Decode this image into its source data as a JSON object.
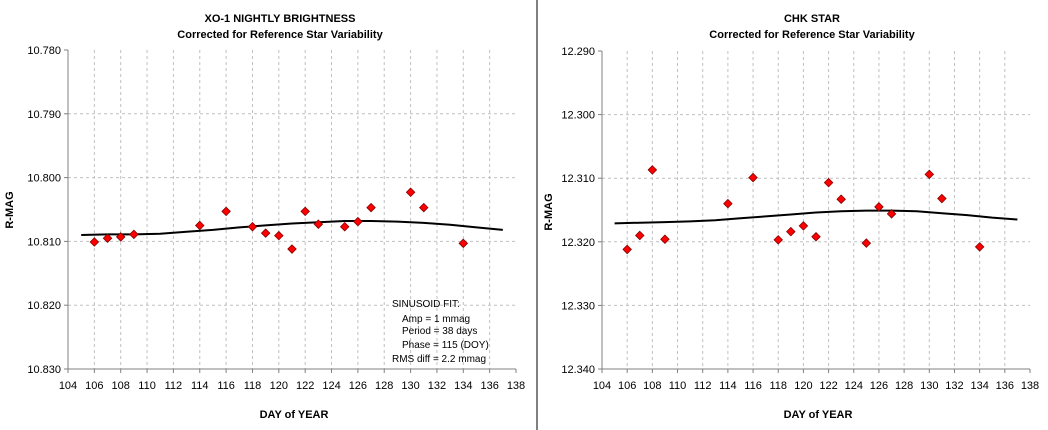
{
  "colors": {
    "marker": "#ff0000",
    "marker_edge": "#800000",
    "grid": "#c0c0c0",
    "fit_line": "#000000",
    "divider": "#000000"
  },
  "chart_data": [
    {
      "type": "scatter",
      "title": "XO-1 NIGHTLY BRIGHTNESS",
      "subtitle": "Corrected for Reference Star Variability",
      "xlabel": "DAY of YEAR",
      "ylabel": "R-MAG",
      "xlim": [
        104,
        138
      ],
      "ylim": [
        10.78,
        10.83
      ],
      "y_inverted": true,
      "grid": true,
      "x_ticks": [
        "104",
        "106",
        "108",
        "110",
        "112",
        "114",
        "116",
        "118",
        "120",
        "122",
        "124",
        "126",
        "128",
        "130",
        "132",
        "134",
        "136",
        "138"
      ],
      "y_ticks": [
        "10.780",
        "10.790",
        "10.800",
        "10.810",
        "10.820",
        "10.830"
      ],
      "points": [
        {
          "x": 106,
          "y": 10.8101
        },
        {
          "x": 107,
          "y": 10.8095
        },
        {
          "x": 108,
          "y": 10.8093
        },
        {
          "x": 109,
          "y": 10.8089
        },
        {
          "x": 114,
          "y": 10.8075
        },
        {
          "x": 116,
          "y": 10.8053
        },
        {
          "x": 118,
          "y": 10.8077
        },
        {
          "x": 119,
          "y": 10.8087
        },
        {
          "x": 120,
          "y": 10.8091
        },
        {
          "x": 121,
          "y": 10.8112
        },
        {
          "x": 122,
          "y": 10.8053
        },
        {
          "x": 123,
          "y": 10.8073
        },
        {
          "x": 125,
          "y": 10.8077
        },
        {
          "x": 126,
          "y": 10.8069
        },
        {
          "x": 127,
          "y": 10.8047
        },
        {
          "x": 130,
          "y": 10.8023
        },
        {
          "x": 131,
          "y": 10.8047
        },
        {
          "x": 134,
          "y": 10.8103
        }
      ],
      "fit": {
        "x": [
          105,
          107,
          109,
          111,
          113,
          115,
          117,
          119,
          121,
          123,
          125,
          127,
          129,
          131,
          133,
          135,
          137
        ],
        "y": [
          10.809,
          10.8089,
          10.8089,
          10.8088,
          10.8085,
          10.8082,
          10.8078,
          10.8075,
          10.8072,
          10.807,
          10.8068,
          10.8068,
          10.8069,
          10.8071,
          10.8074,
          10.8078,
          10.8082
        ]
      },
      "annotation": [
        "SINUSOID FIT:",
        "Amp = 1  mmag",
        "Period = 38 days",
        "Phase = 115 (DOY)",
        "RMS diff = 2.2 mmag"
      ]
    },
    {
      "type": "scatter",
      "title": "CHK STAR",
      "subtitle": "Corrected for Reference Star Variability",
      "xlabel": "DAY of YEAR",
      "ylabel": "R-MAG",
      "xlim": [
        104,
        138
      ],
      "ylim": [
        12.29,
        12.34
      ],
      "y_inverted": true,
      "grid": true,
      "x_ticks": [
        "104",
        "106",
        "108",
        "110",
        "112",
        "114",
        "116",
        "118",
        "120",
        "122",
        "124",
        "126",
        "128",
        "130",
        "132",
        "134",
        "136",
        "138"
      ],
      "y_ticks": [
        "12.290",
        "12.300",
        "12.310",
        "12.320",
        "12.330",
        "12.340"
      ],
      "points": [
        {
          "x": 106,
          "y": 12.3212
        },
        {
          "x": 107,
          "y": 12.319
        },
        {
          "x": 108,
          "y": 12.3087
        },
        {
          "x": 109,
          "y": 12.3196
        },
        {
          "x": 114,
          "y": 12.314
        },
        {
          "x": 116,
          "y": 12.3099
        },
        {
          "x": 118,
          "y": 12.3197
        },
        {
          "x": 119,
          "y": 12.3184
        },
        {
          "x": 120,
          "y": 12.3175
        },
        {
          "x": 121,
          "y": 12.3192
        },
        {
          "x": 122,
          "y": 12.3107
        },
        {
          "x": 123,
          "y": 12.3133
        },
        {
          "x": 125,
          "y": 12.3202
        },
        {
          "x": 126,
          "y": 12.3145
        },
        {
          "x": 127,
          "y": 12.3156
        },
        {
          "x": 130,
          "y": 12.3094
        },
        {
          "x": 131,
          "y": 12.3132
        },
        {
          "x": 134,
          "y": 12.3208
        }
      ],
      "fit": {
        "x": [
          105,
          107,
          109,
          111,
          113,
          115,
          117,
          119,
          121,
          123,
          125,
          127,
          129,
          131,
          133,
          135,
          137
        ],
        "y": [
          12.3171,
          12.317,
          12.3169,
          12.3168,
          12.3166,
          12.3163,
          12.316,
          12.3157,
          12.3154,
          12.3152,
          12.3151,
          12.3151,
          12.3152,
          12.3155,
          12.3158,
          12.3162,
          12.3165
        ]
      }
    }
  ]
}
